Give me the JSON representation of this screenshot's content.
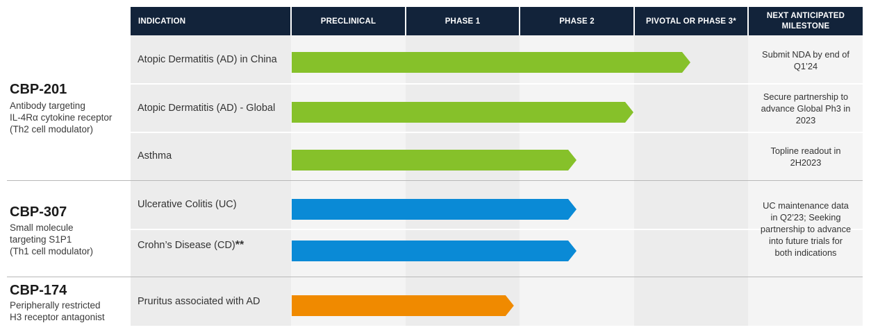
{
  "headers": {
    "indication": "INDICATION",
    "preclinical": "PRECLINICAL",
    "phase1": "PHASE 1",
    "phase2": "PHASE 2",
    "phase3": "PIVOTAL OR PHASE 3*",
    "milestone_line1": "NEXT ANTICIPATED",
    "milestone_line2": "MILESTONE"
  },
  "drugs": [
    {
      "name": "CBP-201",
      "desc": [
        "Antibody targeting",
        "IL-4Rα cytokine receptor",
        "(Th2 cell modulator)"
      ]
    },
    {
      "name": "CBP-307",
      "desc": [
        "Small molecule",
        "targeting S1P1",
        "(Th1 cell modulator)"
      ]
    },
    {
      "name": "CBP-174",
      "desc": [
        "Peripherally restricted",
        "H3 receptor antagonist"
      ]
    }
  ],
  "indications": [
    {
      "label": "Atopic Dermatitis (AD) in China",
      "suffix": ""
    },
    {
      "label": "Atopic Dermatitis (AD) - Global",
      "suffix": ""
    },
    {
      "label": "Asthma",
      "suffix": ""
    },
    {
      "label": "Ulcerative Colitis (UC)",
      "suffix": ""
    },
    {
      "label": "Crohn’s Disease (CD)",
      "suffix": "**"
    },
    {
      "label": "Pruritus associated with AD",
      "suffix": ""
    }
  ],
  "milestones": [
    [
      "Submit NDA by end of",
      "Q1’24"
    ],
    [
      "Secure partnership to",
      "advance Global Ph3 in",
      "2023"
    ],
    [
      "Topline readout in",
      "2H2023"
    ],
    [
      "UC maintenance data",
      "in Q2’23; Seeking",
      "partnership to advance",
      "into future trials for",
      "both indications"
    ]
  ],
  "colors": {
    "header_bg": "#12233a",
    "cbp201": "#86c12a",
    "cbp307": "#0a8ad6",
    "cbp174": "#f08a00"
  },
  "chart_data": {
    "type": "bar",
    "orientation": "horizontal",
    "stages": [
      "PRECLINICAL",
      "PHASE 1",
      "PHASE 2",
      "PIVOTAL OR PHASE 3*"
    ],
    "categories": [
      "Atopic Dermatitis (AD) in China",
      "Atopic Dermatitis (AD) - Global",
      "Asthma",
      "Ulcerative Colitis (UC)",
      "Crohn’s Disease (CD)**",
      "Pruritus associated with AD"
    ],
    "values": [
      3.5,
      3.0,
      2.5,
      2.5,
      2.5,
      1.95
    ],
    "xlim": [
      0,
      4
    ],
    "bar_colors": [
      "#86c12a",
      "#86c12a",
      "#86c12a",
      "#0a8ad6",
      "#0a8ad6",
      "#f08a00"
    ]
  }
}
